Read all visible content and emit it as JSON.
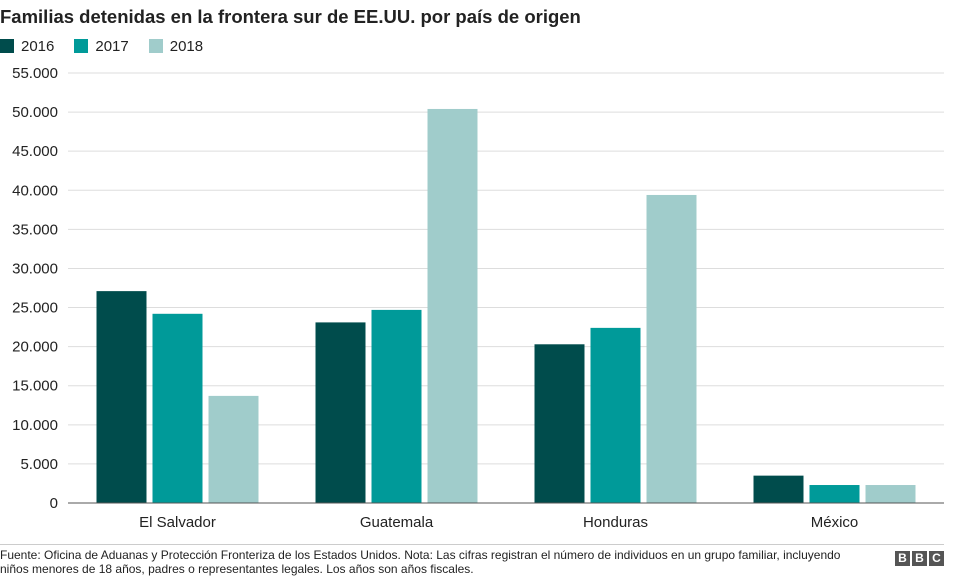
{
  "chart_data": {
    "type": "bar",
    "title": "Familias detenidas en la frontera sur de EE.UU. por país de origen",
    "categories": [
      "El Salvador",
      "Guatemala",
      "Honduras",
      "México"
    ],
    "series": [
      {
        "name": "2016",
        "color": "#004c4c",
        "values": [
          27100,
          23100,
          20300,
          3500
        ]
      },
      {
        "name": "2017",
        "color": "#009a99",
        "values": [
          24200,
          24700,
          22400,
          2300
        ]
      },
      {
        "name": "2018",
        "color": "#a0cccb",
        "values": [
          13700,
          50400,
          39400,
          2300
        ]
      }
    ],
    "ylim": [
      0,
      55000
    ],
    "yticks": [
      0,
      5000,
      10000,
      15000,
      20000,
      25000,
      30000,
      35000,
      40000,
      45000,
      50000,
      55000
    ],
    "ytick_labels": [
      "0",
      "5.000",
      "10.000",
      "15.000",
      "20.000",
      "25.000",
      "30.000",
      "35.000",
      "40.000",
      "45.000",
      "50.000",
      "55.000"
    ],
    "xlabel": "",
    "ylabel": "",
    "grid": true,
    "legend_position": "top-left"
  },
  "footer": {
    "source": "Fuente: Oficina de Aduanas y Protección Fronteriza de los Estados Unidos. Nota: Las cifras registran el número de individuos en un grupo familiar, incluyendo niños menores de 18 años, padres o representantes legales. Los años son años fiscales.",
    "logo_letters": [
      "B",
      "B",
      "C"
    ]
  }
}
